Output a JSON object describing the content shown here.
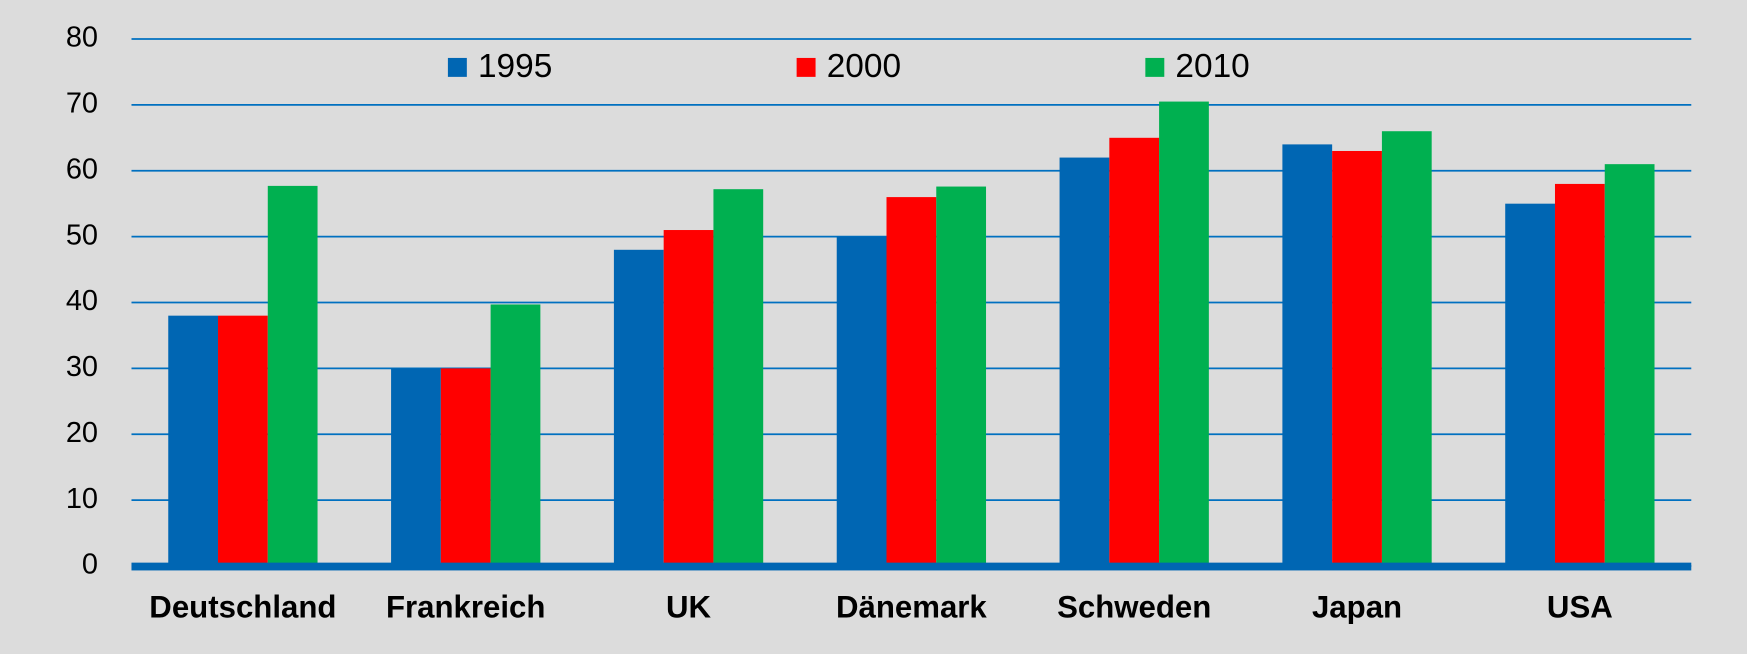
{
  "chart_data": {
    "type": "bar",
    "categories": [
      "Deutschland",
      "Frankreich",
      "UK",
      "Dänemark",
      "Schweden",
      "Japan",
      "USA"
    ],
    "series": [
      {
        "name": "1995",
        "color": "#0066b3",
        "values": [
          38,
          30,
          48,
          50,
          62,
          64,
          55
        ]
      },
      {
        "name": "2000",
        "color": "#ff0000",
        "values": [
          38,
          30,
          51,
          56,
          65,
          63,
          58
        ]
      },
      {
        "name": "2010",
        "color": "#00b050",
        "values": [
          57.7,
          39.7,
          57.2,
          57.6,
          70.5,
          66,
          61
        ]
      }
    ],
    "ylim": [
      0,
      80
    ],
    "yticks": [
      0,
      10,
      20,
      30,
      40,
      50,
      60,
      70,
      80
    ],
    "grid": true,
    "legend": "top"
  }
}
